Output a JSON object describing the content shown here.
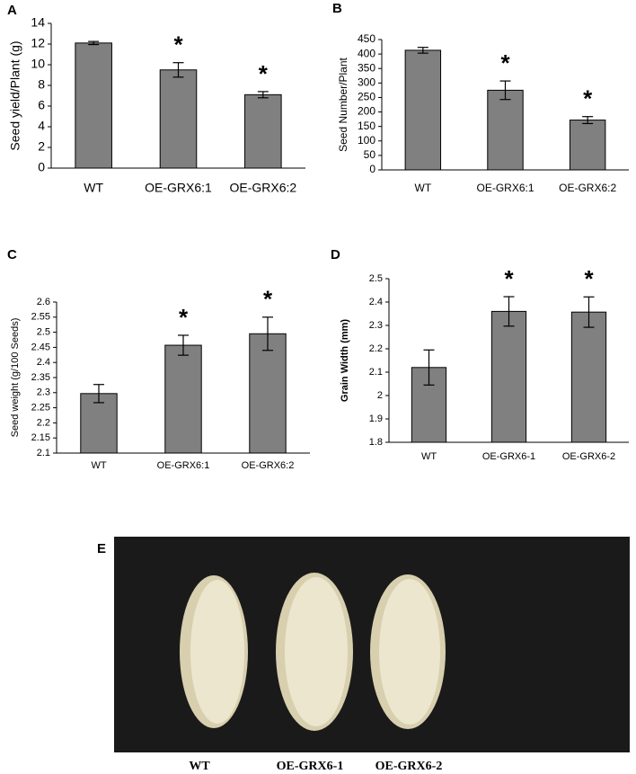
{
  "chart_data": [
    {
      "type": "bar",
      "panel": "A",
      "ylabel": "Seed yield/Plant (g)",
      "categories": [
        "WT",
        "OE-GRX6:1",
        "OE-GRX6:2"
      ],
      "values": [
        12.1,
        9.5,
        7.1
      ],
      "errors": [
        0.15,
        0.7,
        0.3
      ],
      "significance": [
        null,
        "*",
        "*"
      ],
      "color": "#808080",
      "ylim": [
        0,
        14
      ],
      "yticks": [
        0,
        2,
        4,
        6,
        8,
        10,
        12,
        14
      ]
    },
    {
      "type": "bar",
      "panel": "B",
      "ylabel": "Seed Number/Plant",
      "categories": [
        "WT",
        "OE-GRX6:1",
        "OE-GRX6:2"
      ],
      "values": [
        413,
        275,
        172
      ],
      "errors": [
        10,
        32,
        12
      ],
      "significance": [
        null,
        "*",
        "*"
      ],
      "color": "#808080",
      "ylim": [
        0,
        450
      ],
      "yticks": [
        0,
        50,
        100,
        150,
        200,
        250,
        300,
        350,
        400,
        450
      ]
    },
    {
      "type": "bar",
      "panel": "C",
      "ylabel": "Seed weight (g/100 Seeds)",
      "categories": [
        "WT",
        "OE-GRX6:1",
        "OE-GRX6:2"
      ],
      "values": [
        2.297,
        2.457,
        2.495
      ],
      "errors": [
        0.03,
        0.033,
        0.055
      ],
      "significance": [
        null,
        "*",
        "*"
      ],
      "color": "#808080",
      "ylim": [
        2.1,
        2.6
      ],
      "yticks": [
        2.1,
        2.15,
        2.2,
        2.25,
        2.3,
        2.35,
        2.4,
        2.45,
        2.5,
        2.55,
        2.6
      ]
    },
    {
      "type": "bar",
      "panel": "D",
      "ylabel": "Grain Width (mm)",
      "categories": [
        "WT",
        "OE-GRX6-1",
        "OE-GRX6-2"
      ],
      "values": [
        2.12,
        2.36,
        2.357
      ],
      "errors": [
        0.075,
        0.063,
        0.065
      ],
      "significance": [
        null,
        "*",
        "*"
      ],
      "color": "#808080",
      "ylim": [
        1.8,
        2.5
      ],
      "yticks": [
        1.8,
        1.9,
        2,
        2.1,
        2.2,
        2.3,
        2.4,
        2.5
      ]
    }
  ],
  "photo": {
    "panel": "E",
    "captions": [
      "WT",
      "OE-GRX6-1",
      "OE-GRX6-2"
    ]
  }
}
